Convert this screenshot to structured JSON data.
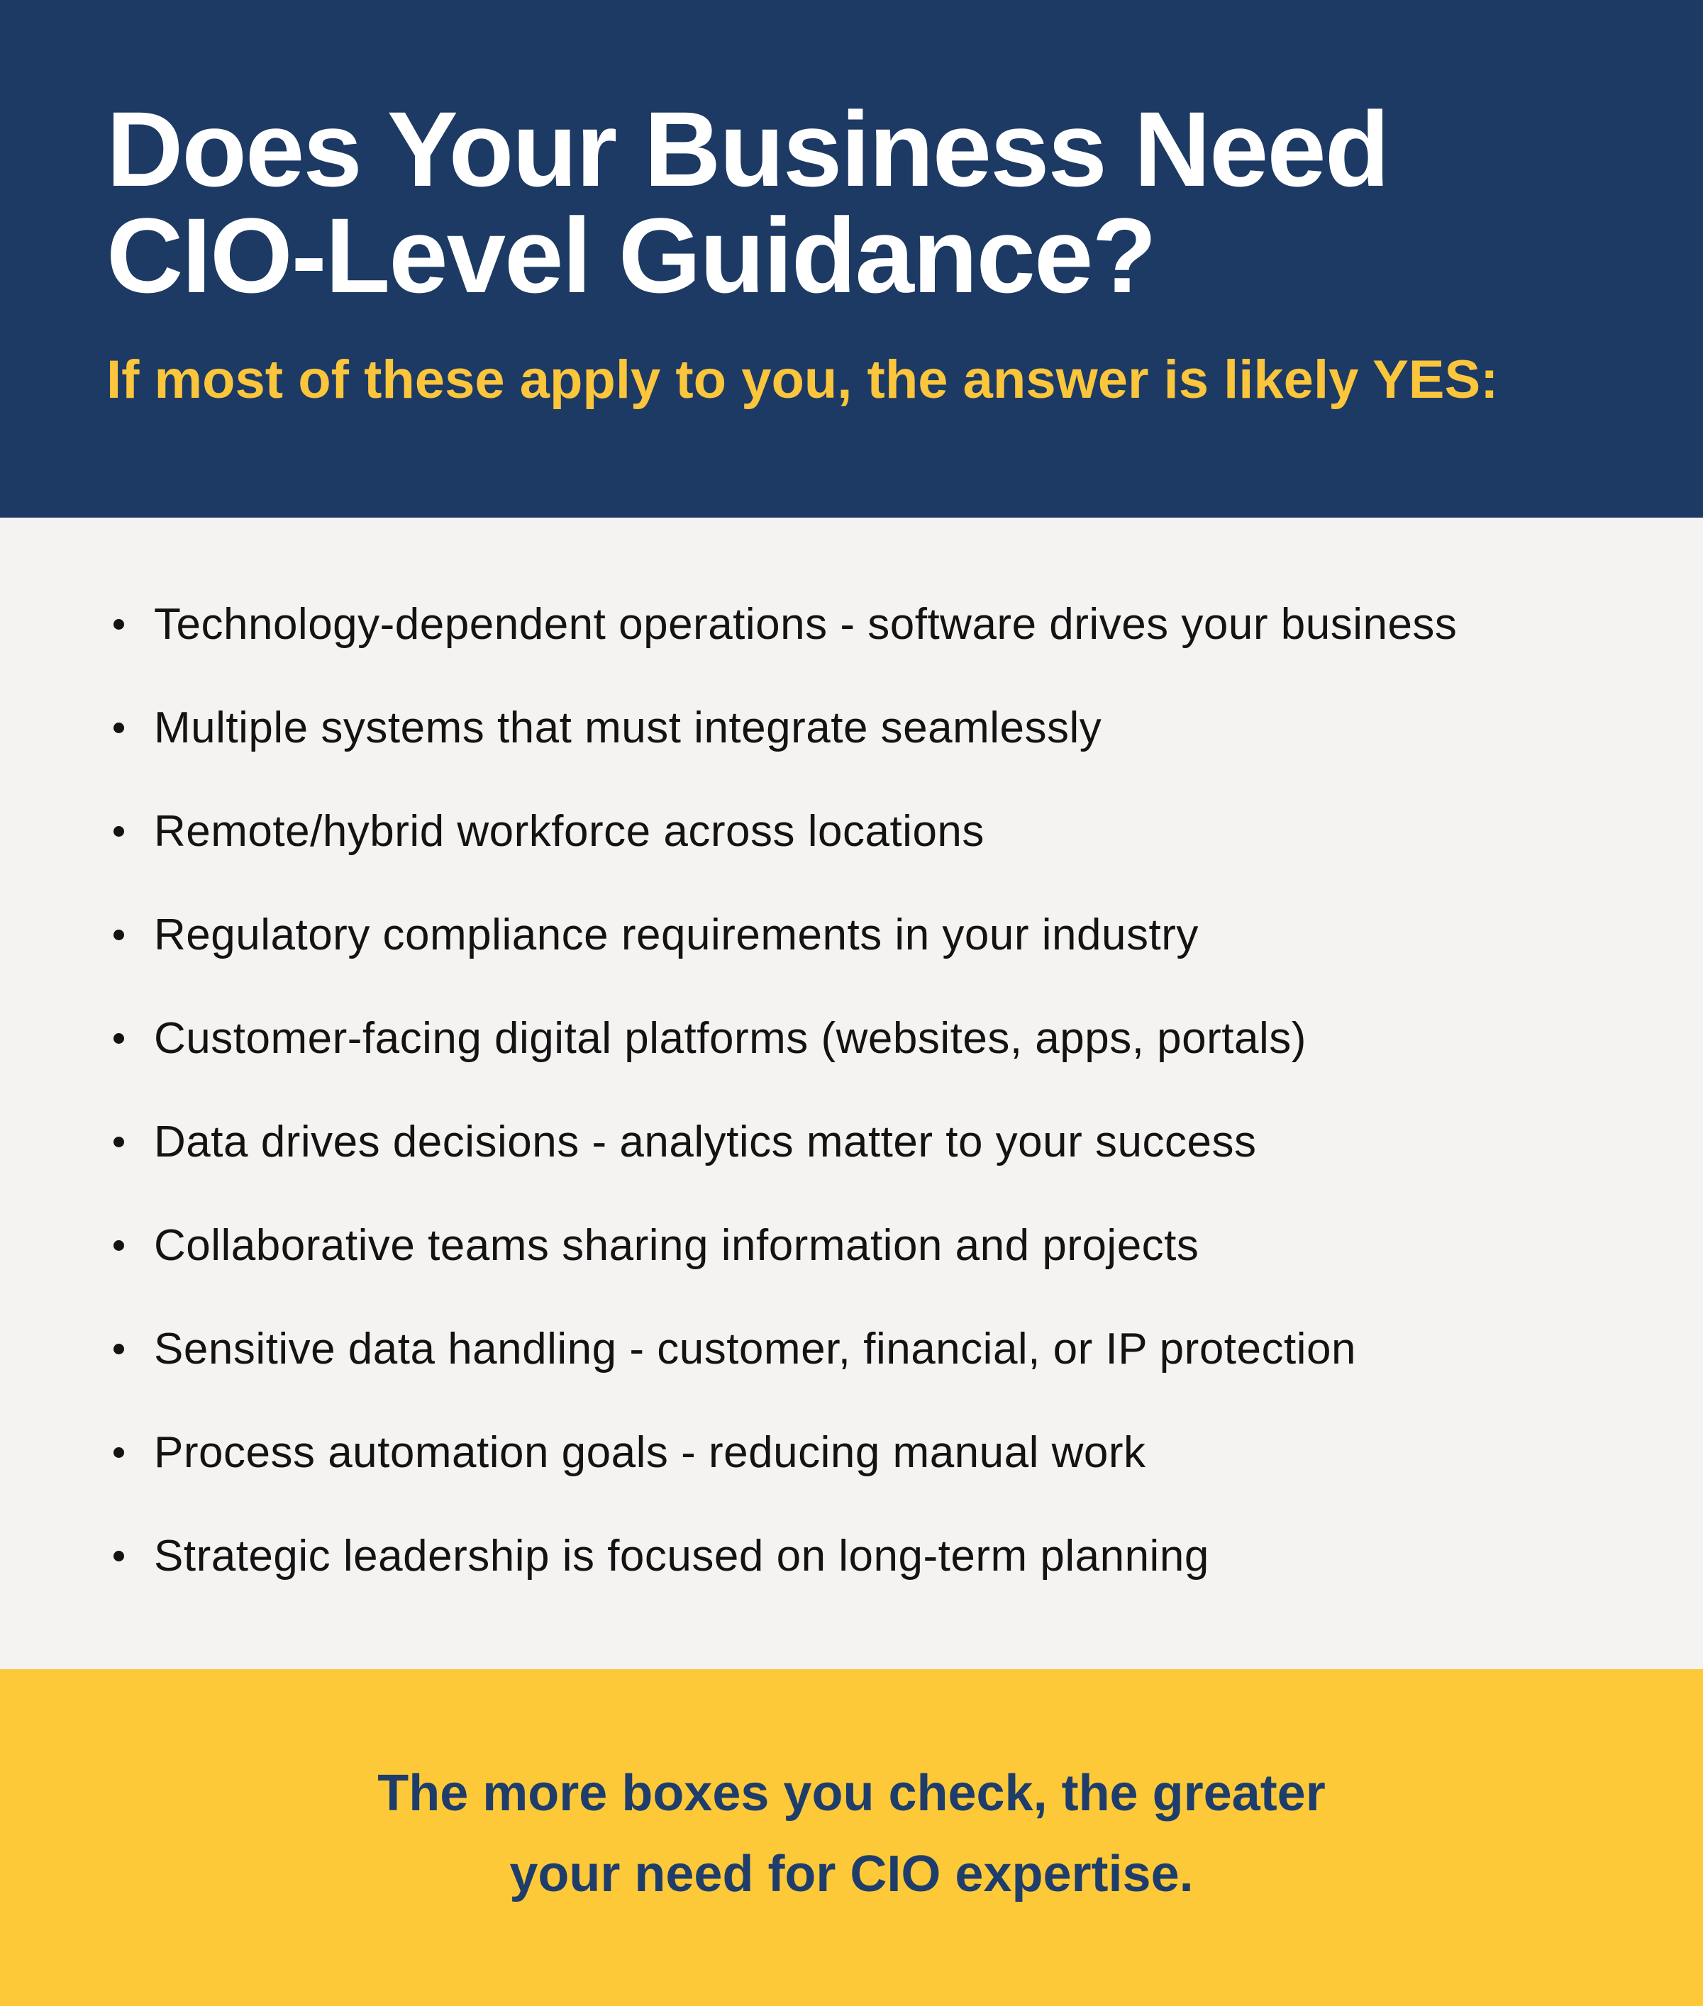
{
  "colors": {
    "header_bg": "#1C3A64",
    "body_bg": "#F5F3F1",
    "footer_bg": "#FEC938",
    "title_color": "#FFFFFF",
    "subtitle_color": "#FBC53C",
    "list_text_color": "#131313",
    "footer_text_color": "#1E3D6B"
  },
  "header": {
    "title_line1": "Does Your Business Need",
    "title_line2": "CIO-Level Guidance?",
    "subtitle": "If most of these apply to you, the answer is likely YES:"
  },
  "checklist": {
    "items": [
      "Technology-dependent operations - software drives your business",
      "Multiple systems that must integrate seamlessly",
      "Remote/hybrid workforce across locations",
      "Regulatory compliance requirements in your industry",
      "Customer-facing digital platforms (websites, apps, portals)",
      "Data drives decisions - analytics matter to your success",
      "Collaborative teams sharing information and projects",
      "Sensitive data handling - customer, financial, or IP protection",
      "Process automation goals - reducing manual work",
      "Strategic leadership is focused on long-term planning"
    ]
  },
  "footer": {
    "line1": "The more boxes you check, the greater",
    "line2": "your need for CIO expertise."
  }
}
